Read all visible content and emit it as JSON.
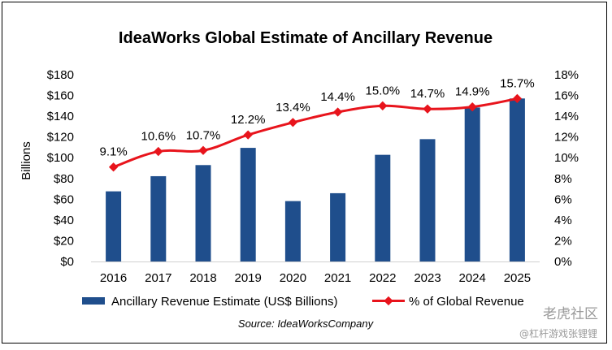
{
  "chart_data": {
    "type": "bar+line",
    "title": "IdeaWorks Global Estimate of Ancillary Revenue",
    "ylabel": "Billions",
    "categories": [
      "2016",
      "2017",
      "2018",
      "2019",
      "2020",
      "2021",
      "2022",
      "2023",
      "2024",
      "2025"
    ],
    "left_axis": {
      "ylim": [
        0,
        180
      ],
      "tick_labels": [
        "$0",
        "$20",
        "$40",
        "$60",
        "$80",
        "$100",
        "$120",
        "$140",
        "$160",
        "$180"
      ]
    },
    "right_axis": {
      "ylim": [
        0,
        18
      ],
      "tick_labels": [
        "0%",
        "2%",
        "4%",
        "6%",
        "8%",
        "10%",
        "12%",
        "14%",
        "16%",
        "18%"
      ]
    },
    "series": [
      {
        "name": "Ancillary Revenue Estimate (US$ Billions)",
        "type": "bar",
        "axis": "left",
        "color": "#1f4e8c",
        "values": [
          67.6,
          82.2,
          92.9,
          109.5,
          58.2,
          65.8,
          102.8,
          117.9,
          148.4,
          157.1
        ]
      },
      {
        "name": "% of Global Revenue",
        "type": "line",
        "axis": "right",
        "color": "#e8141c",
        "values": [
          9.1,
          10.6,
          10.7,
          12.2,
          13.4,
          14.4,
          15.0,
          14.7,
          14.9,
          15.7
        ],
        "data_labels": [
          "9.1%",
          "10.6%",
          "10.7%",
          "12.2%",
          "13.4%",
          "14.4%",
          "15.0%",
          "14.7%",
          "14.9%",
          "15.7%"
        ]
      }
    ],
    "grid": false,
    "legend": "bottom"
  },
  "source": "Source:  IdeaWorksCompany",
  "watermark": {
    "line1": "老虎社区",
    "line2": "@杠杆游戏张锂锂"
  }
}
